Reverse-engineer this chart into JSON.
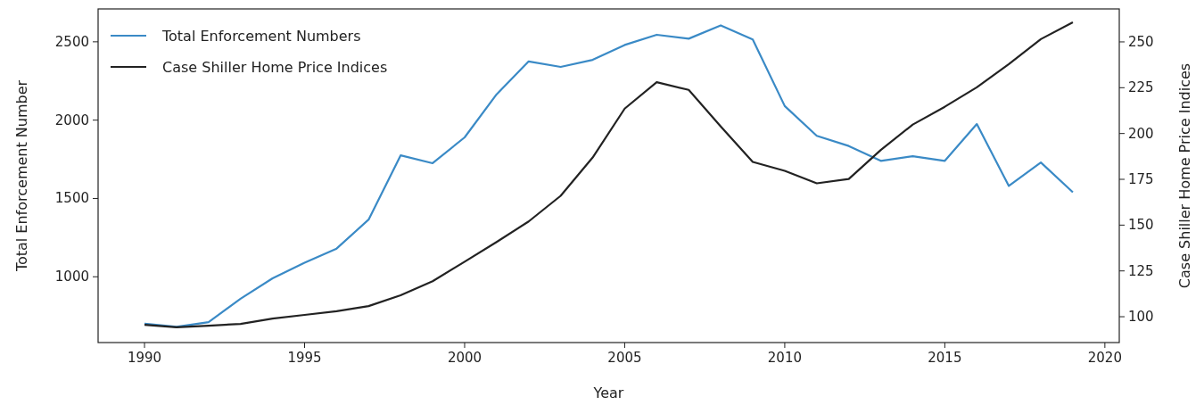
{
  "chart_data": {
    "type": "line",
    "xlabel": "Year",
    "ylabel": "Total Enforcement Number",
    "y2label": "Case Shiller Home Price Indices",
    "x": [
      1990,
      1991,
      1992,
      1993,
      1994,
      1995,
      1996,
      1997,
      1998,
      1999,
      2000,
      2001,
      2002,
      2003,
      2004,
      2005,
      2006,
      2007,
      2008,
      2009,
      2010,
      2011,
      2012,
      2013,
      2014,
      2015,
      2016,
      2017,
      2018,
      2019
    ],
    "series": [
      {
        "name": "Total Enforcement Numbers",
        "color": "#3a8ac6",
        "values": [
          700,
          680,
          710,
          860,
          990,
          1090,
          1180,
          1365,
          1775,
          1725,
          1890,
          2165,
          2375,
          2340,
          2385,
          2480,
          2545,
          2520,
          2605,
          2515,
          2090,
          1900,
          1835,
          1740,
          1770,
          1740,
          1975,
          1580,
          1730,
          1540
        ]
      },
      {
        "name": "Case Shiller Home Price Indices",
        "color": "#222222",
        "axis": "y2",
        "values": [
          95.6,
          94.2,
          95.1,
          96.1,
          99,
          101,
          103,
          105.8,
          111.7,
          119.4,
          130,
          140.8,
          152,
          166,
          186.9,
          213.6,
          228,
          223.8,
          203.9,
          184.5,
          179.6,
          172.8,
          175.2,
          191,
          204.9,
          214.6,
          225.2,
          237.9,
          251.5,
          260.7
        ]
      }
    ],
    "xlim": [
      1988.55,
      2020.45
    ],
    "xticks": [
      1990,
      1995,
      2000,
      2005,
      2010,
      2015,
      2020
    ],
    "ylim": [
      580,
      2710
    ],
    "yticks": [
      1000,
      1500,
      2000,
      2500
    ],
    "y2lim": [
      85.9,
      268
    ],
    "y2ticks": [
      100,
      125,
      150,
      175,
      200,
      225,
      250
    ],
    "legend": "top left",
    "grid": false
  }
}
